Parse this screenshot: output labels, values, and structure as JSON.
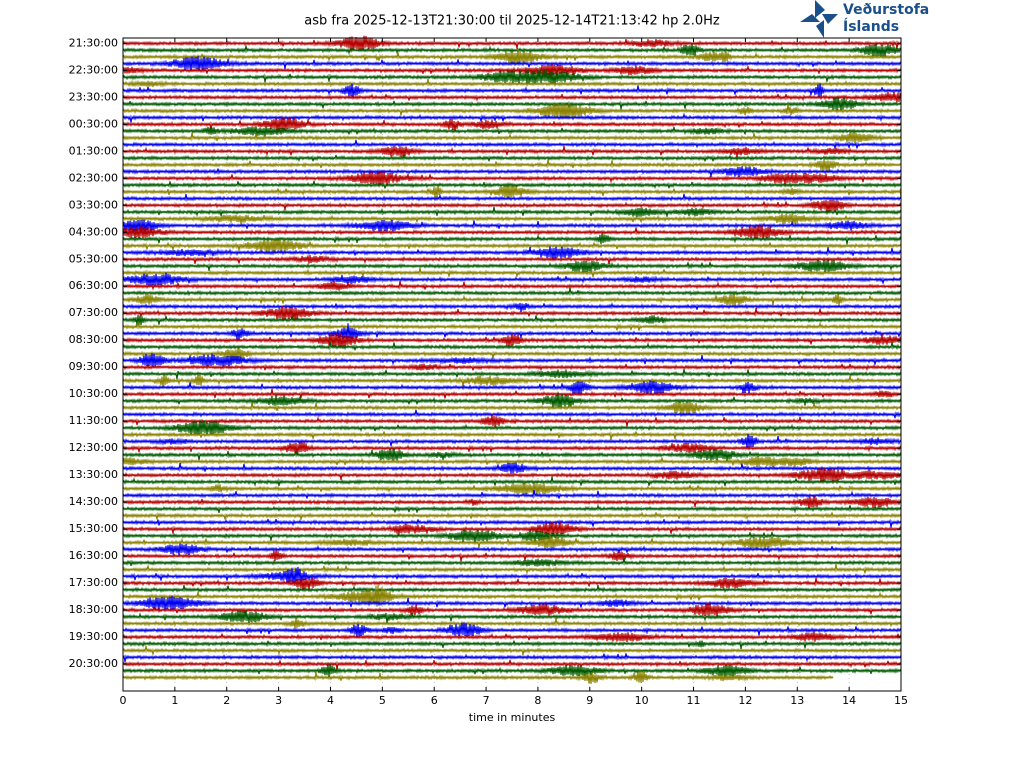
{
  "chart_data": {
    "type": "helicorder",
    "title": "asb fra 2025-12-13T21:30:00 til 2025-12-14T21:13:42 hp 2.0Hz",
    "xlabel": "time in minutes",
    "xlim": [
      0,
      15
    ],
    "xticks": [
      0,
      1,
      2,
      3,
      4,
      5,
      6,
      7,
      8,
      9,
      10,
      11,
      12,
      13,
      14,
      15
    ],
    "ylim": [
      -0.2,
      24
    ],
    "yticks": [
      {
        "value": 0,
        "label": "21:30:00"
      },
      {
        "value": 1,
        "label": "22:30:00"
      },
      {
        "value": 2,
        "label": "23:30:00"
      },
      {
        "value": 3,
        "label": "00:30:00"
      },
      {
        "value": 4,
        "label": "01:30:00"
      },
      {
        "value": 5,
        "label": "02:30:00"
      },
      {
        "value": 6,
        "label": "03:30:00"
      },
      {
        "value": 7,
        "label": "04:30:00"
      },
      {
        "value": 8,
        "label": "05:30:00"
      },
      {
        "value": 9,
        "label": "06:30:00"
      },
      {
        "value": 10,
        "label": "07:30:00"
      },
      {
        "value": 11,
        "label": "08:30:00"
      },
      {
        "value": 12,
        "label": "09:30:00"
      },
      {
        "value": 13,
        "label": "10:30:00"
      },
      {
        "value": 14,
        "label": "11:30:00"
      },
      {
        "value": 15,
        "label": "12:30:00"
      },
      {
        "value": 16,
        "label": "13:30:00"
      },
      {
        "value": 17,
        "label": "14:30:00"
      },
      {
        "value": 18,
        "label": "15:30:00"
      },
      {
        "value": 19,
        "label": "16:30:00"
      },
      {
        "value": 20,
        "label": "17:30:00"
      },
      {
        "value": 21,
        "label": "18:30:00"
      },
      {
        "value": 22,
        "label": "19:30:00"
      },
      {
        "value": 23,
        "label": "20:30:00"
      }
    ],
    "trace_colors": [
      "#b40000",
      "#005a00",
      "#8a8200",
      "#0000f0"
    ],
    "grid": true
  },
  "logo": {
    "line1": "Veðurstofa",
    "line2": "Íslands"
  }
}
